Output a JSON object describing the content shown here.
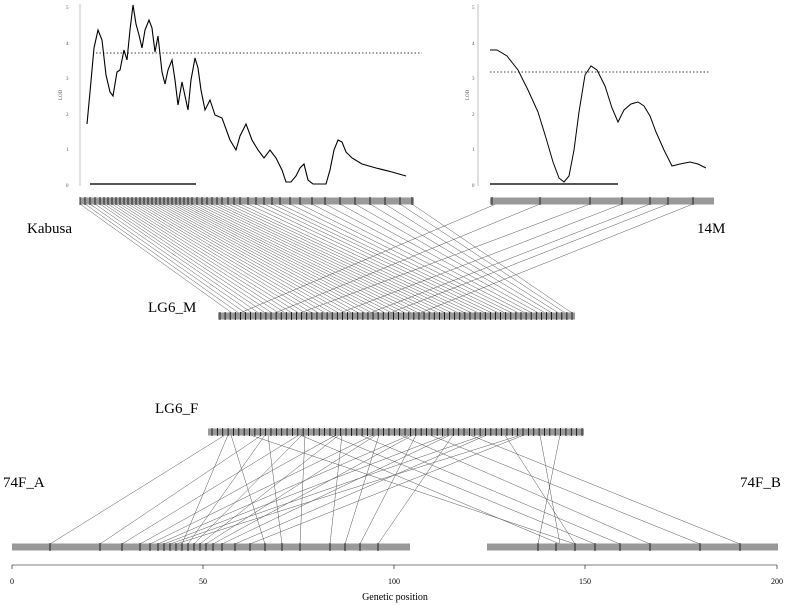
{
  "labels": {
    "kabusa": "Kabusa",
    "m14": "14M",
    "lg6m": "LG6_M",
    "lg6f": "LG6_F",
    "f74a": "74F_A",
    "f74b": "74F_B"
  },
  "axis": {
    "title": "Genetic position",
    "ticks": [
      "0",
      "50",
      "100",
      "150",
      "200"
    ]
  },
  "lod": {
    "ylabel": "LOD",
    "yticks": [
      "0",
      "1",
      "2",
      "3",
      "4",
      "5"
    ]
  },
  "colors": {
    "bar": "#999999",
    "line": "#555555",
    "marker": "#000000",
    "curve": "#000000"
  }
}
